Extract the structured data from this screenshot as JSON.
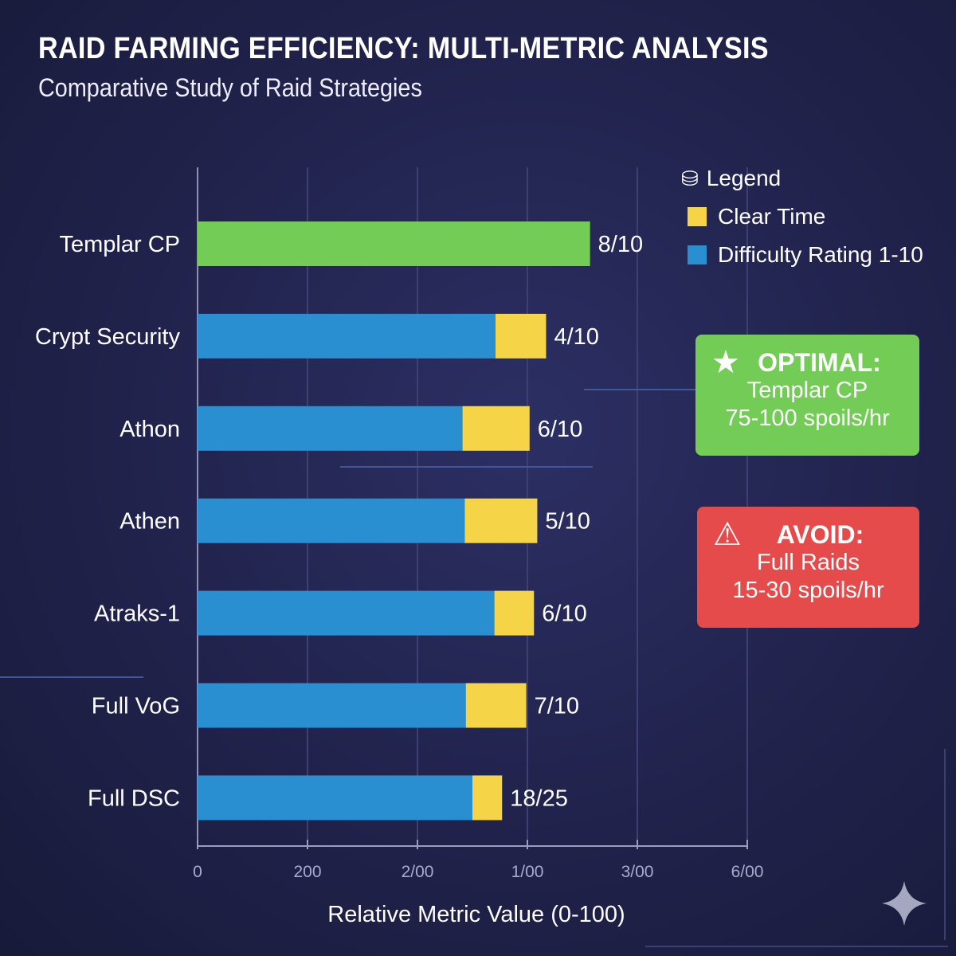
{
  "title": "RAID FARMING EFFICIENCY: MULTI-METRIC ANALYSIS",
  "subtitle": "Comparative Study of Raid Strategies",
  "legend": {
    "title": "Legend",
    "icon": "coins-icon",
    "items": [
      {
        "label": "Clear Time",
        "color": "#f5d547"
      },
      {
        "label": "Difficulty Rating 1-10",
        "color": "#2a8fd0"
      }
    ]
  },
  "callouts": {
    "optimal": {
      "head": "OPTIMAL:",
      "line1": "Templar CP",
      "line2": "75-100 spoils/hr",
      "color": "#73cc56",
      "icon": "star-icon"
    },
    "avoid": {
      "head": "AVOID:",
      "line1": "Full Raids",
      "line2": "15-30 spoils/hr",
      "color": "#e54b4b",
      "icon": "warning-icon"
    }
  },
  "chart_data": {
    "type": "bar",
    "orientation": "horizontal",
    "stacked": true,
    "title": "RAID FARMING EFFICIENCY: MULTI-METRIC ANALYSIS",
    "subtitle": "Comparative Study of Raid Strategies",
    "xlabel": "Relative Metric Value (0-100)",
    "xtick_labels": [
      "0",
      "200",
      "2/00",
      "1/00",
      "3/00",
      "6/00"
    ],
    "xlim": [
      0,
      5
    ],
    "grid": true,
    "legend_position": "top-right",
    "categories": [
      "Templar CP",
      "Crypt Security",
      "Athon",
      "Athen",
      "Atraks-1",
      "Full VoG",
      "Full DSC"
    ],
    "series": [
      {
        "name": "Difficulty Rating 1-10",
        "color": "#2a8fd0",
        "values": [
          3.57,
          2.71,
          2.41,
          2.43,
          2.7,
          2.44,
          2.5
        ]
      },
      {
        "name": "Clear Time",
        "color": "#f5d547",
        "values": [
          0,
          0.46,
          0.61,
          0.66,
          0.36,
          0.55,
          0.27
        ]
      }
    ],
    "highlight": {
      "category": "Templar CP",
      "color": "#73cc56"
    },
    "data_labels": [
      "8/10",
      "4/10",
      "6/10",
      "5/10",
      "6/10",
      "7/10",
      "18/25"
    ]
  }
}
